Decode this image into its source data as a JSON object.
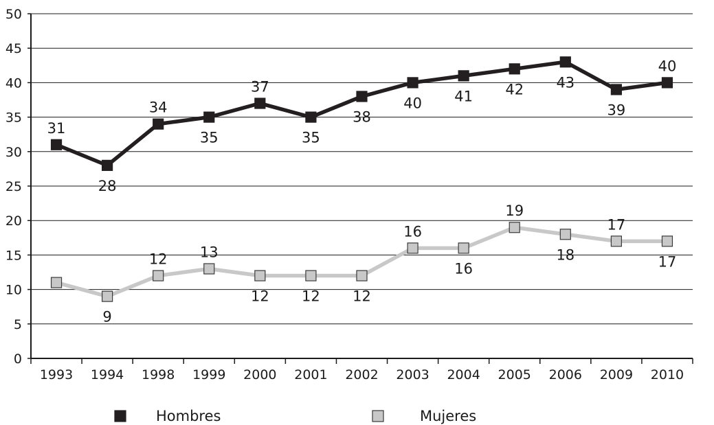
{
  "chart_data": {
    "type": "line",
    "title": "",
    "xlabel": "",
    "ylabel": "",
    "ylim": [
      0,
      50
    ],
    "y_ticks": [
      0,
      5,
      10,
      15,
      20,
      25,
      30,
      35,
      40,
      45,
      50
    ],
    "grid": true,
    "legend_position": "bottom",
    "categories": [
      "1993",
      "1994",
      "1998",
      "1999",
      "2000",
      "2001",
      "2002",
      "2003",
      "2004",
      "2005",
      "2006",
      "2009",
      "2010"
    ],
    "series": [
      {
        "name": "Hombres",
        "values": [
          31,
          28,
          34,
          35,
          37,
          35,
          38,
          40,
          41,
          42,
          43,
          39,
          40
        ],
        "label_placement": [
          "above",
          "below",
          "above",
          "below",
          "above",
          "below",
          "below",
          "below",
          "below",
          "below",
          "below",
          "below",
          "above"
        ],
        "line_color": "#231f20",
        "marker_fill": "#231f20",
        "marker_stroke": "#231f20"
      },
      {
        "name": "Mujeres",
        "values": [
          11,
          9,
          12,
          13,
          12,
          12,
          12,
          16,
          16,
          19,
          18,
          17,
          17
        ],
        "label_placement": [
          "none",
          "below",
          "above",
          "above",
          "below",
          "below",
          "below",
          "above",
          "below",
          "above",
          "below",
          "above",
          "below"
        ],
        "line_color": "#c8c8c8",
        "marker_fill": "#c8c8c8",
        "marker_stroke": "#3a3a3a"
      }
    ]
  }
}
